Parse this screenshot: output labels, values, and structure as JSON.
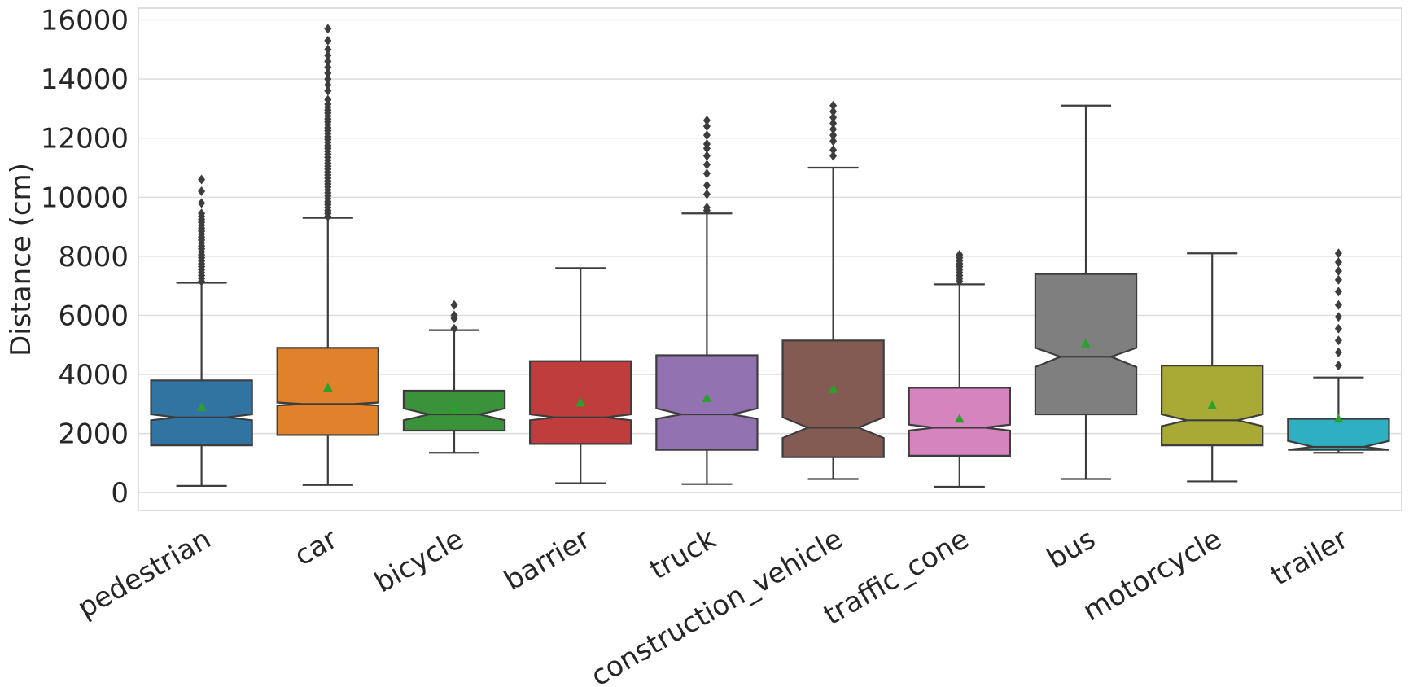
{
  "chart_data": {
    "type": "boxplot",
    "title": "",
    "xlabel": "",
    "ylabel": "Distance (cm)",
    "ylim": [
      -600,
      16400
    ],
    "yticks": [
      0,
      2000,
      4000,
      6000,
      8000,
      10000,
      12000,
      14000,
      16000
    ],
    "grid": "horizontal",
    "notched": true,
    "show_means": true,
    "mean_marker_color": "#2ca02c",
    "edge_color": "#3d3d3d",
    "categories": [
      "pedestrian",
      "car",
      "bicycle",
      "barrier",
      "truck",
      "construction_vehicle",
      "traffic_cone",
      "bus",
      "motorcycle",
      "trailer"
    ],
    "boxes": [
      {
        "name": "pedestrian",
        "color": "#3274a1",
        "whislo": 230,
        "q1": 1600,
        "med": 2550,
        "q3": 3800,
        "whishi": 7100,
        "mean": 2900,
        "notch_lo": 2450,
        "notch_hi": 2650,
        "fliers": [
          7150,
          7250,
          7350,
          7450,
          7550,
          7650,
          7750,
          7850,
          7950,
          8050,
          8150,
          8250,
          8350,
          8450,
          8550,
          8650,
          8750,
          8850,
          8950,
          9050,
          9150,
          9250,
          9350,
          9450,
          9800,
          10200,
          10600
        ]
      },
      {
        "name": "car",
        "color": "#e1812c",
        "whislo": 260,
        "q1": 1950,
        "med": 3000,
        "q3": 4900,
        "whishi": 9300,
        "mean": 3550,
        "notch_lo": 2950,
        "notch_hi": 3050,
        "fliers": [
          9350,
          9450,
          9550,
          9650,
          9750,
          9850,
          9950,
          10050,
          10150,
          10250,
          10350,
          10450,
          10550,
          10650,
          10750,
          10850,
          10950,
          11050,
          11150,
          11250,
          11350,
          11450,
          11550,
          11650,
          11750,
          11850,
          11950,
          12050,
          12150,
          12250,
          12350,
          12450,
          12550,
          12650,
          12750,
          12850,
          12950,
          13050,
          13150,
          13300,
          13600,
          13800,
          14000,
          14200,
          14400,
          14600,
          14800,
          15000,
          15300,
          15700
        ]
      },
      {
        "name": "bicycle",
        "color": "#3a923a",
        "whislo": 1350,
        "q1": 2100,
        "med": 2650,
        "q3": 3450,
        "whishi": 5500,
        "mean": 2850,
        "notch_lo": 2450,
        "notch_hi": 2850,
        "fliers": [
          5550,
          5900,
          6000,
          6350
        ]
      },
      {
        "name": "barrier",
        "color": "#c03d3e",
        "whislo": 320,
        "q1": 1650,
        "med": 2550,
        "q3": 4450,
        "whishi": 7600,
        "mean": 3050,
        "notch_lo": 2450,
        "notch_hi": 2650,
        "fliers": []
      },
      {
        "name": "truck",
        "color": "#9372b2",
        "whislo": 290,
        "q1": 1450,
        "med": 2650,
        "q3": 4650,
        "whishi": 9450,
        "mean": 3200,
        "notch_lo": 2500,
        "notch_hi": 2850,
        "fliers": [
          9550,
          9650,
          10100,
          10400,
          10800,
          11100,
          11400,
          11650,
          11800,
          12100,
          12400,
          12600
        ]
      },
      {
        "name": "construction_vehicle",
        "color": "#845b53",
        "whislo": 460,
        "q1": 1200,
        "med": 2200,
        "q3": 5150,
        "whishi": 11000,
        "mean": 3500,
        "notch_lo": 1850,
        "notch_hi": 2550,
        "fliers": [
          11400,
          11600,
          11900,
          12100,
          12300,
          12500,
          12700,
          12900,
          13100
        ]
      },
      {
        "name": "traffic_cone",
        "color": "#d684bd",
        "whislo": 200,
        "q1": 1250,
        "med": 2200,
        "q3": 3550,
        "whishi": 7050,
        "mean": 2500,
        "notch_lo": 2100,
        "notch_hi": 2300,
        "fliers": [
          7150,
          7250,
          7350,
          7450,
          7550,
          7650,
          7750,
          7850,
          7950,
          8050
        ]
      },
      {
        "name": "bus",
        "color": "#7f7f7f",
        "whislo": 460,
        "q1": 2650,
        "med": 4600,
        "q3": 7400,
        "whishi": 13100,
        "mean": 5050,
        "notch_lo": 4250,
        "notch_hi": 4900,
        "fliers": []
      },
      {
        "name": "motorcycle",
        "color": "#a9aa35",
        "whislo": 380,
        "q1": 1600,
        "med": 2450,
        "q3": 4300,
        "whishi": 8100,
        "mean": 2950,
        "notch_lo": 2250,
        "notch_hi": 2650,
        "fliers": []
      },
      {
        "name": "trailer",
        "color": "#2eb0c2",
        "whislo": 1350,
        "q1": 1450,
        "med": 1550,
        "q3": 2500,
        "whishi": 3900,
        "mean": 2500,
        "notch_lo": 1450,
        "notch_hi": 1750,
        "fliers": [
          4300,
          4750,
          5150,
          5550,
          5950,
          6350,
          6800,
          7200,
          7500,
          7800,
          8100
        ]
      }
    ]
  }
}
